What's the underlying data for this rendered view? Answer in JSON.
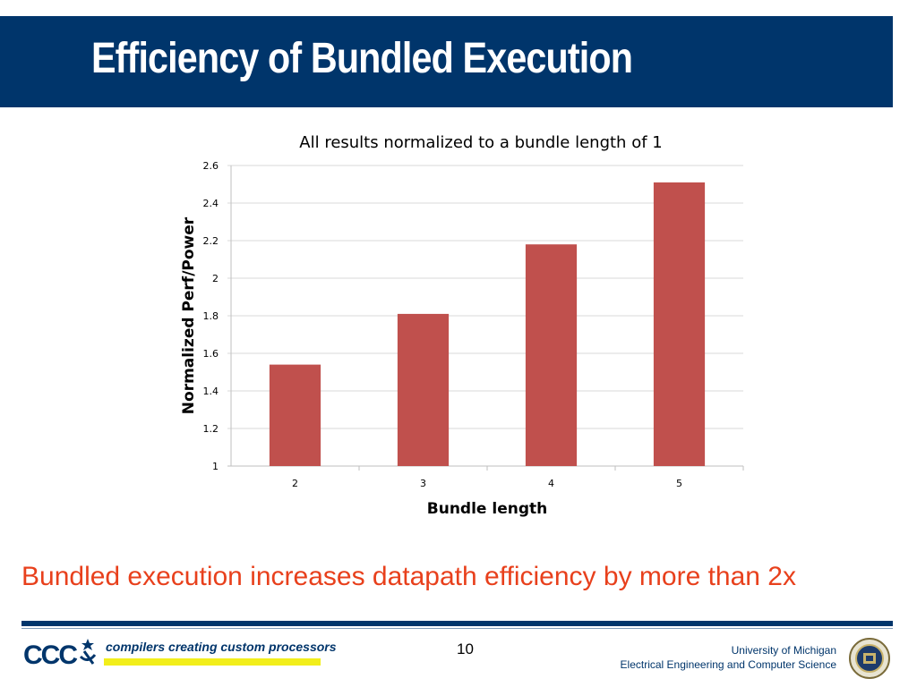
{
  "slide": {
    "title": "Efficiency of Bundled Execution",
    "claim": "Bundled execution increases datapath efficiency by more than 2x",
    "page_number": "10"
  },
  "footer": {
    "logo_text": "CCC",
    "tagline": "compilers creating custom processors",
    "university": "University of Michigan",
    "department": "Electrical Engineering and Computer Science"
  },
  "colors": {
    "title_bar": "#00356b",
    "bar": "#c0504d",
    "claim_text": "#e8401c",
    "grid": "#d9d9d9"
  },
  "chart_data": {
    "type": "bar",
    "title": "All results normalized to a bundle length of 1",
    "xlabel": "Bundle length",
    "ylabel": "Normalized Perf/Power",
    "categories": [
      "2",
      "3",
      "4",
      "5"
    ],
    "values": [
      1.54,
      1.81,
      2.18,
      2.51
    ],
    "ylim": [
      1,
      2.6
    ],
    "yticks": [
      "1",
      "1.2",
      "1.4",
      "1.6",
      "1.8",
      "2",
      "2.2",
      "2.4",
      "2.6"
    ],
    "grid": true,
    "legend": "none"
  }
}
